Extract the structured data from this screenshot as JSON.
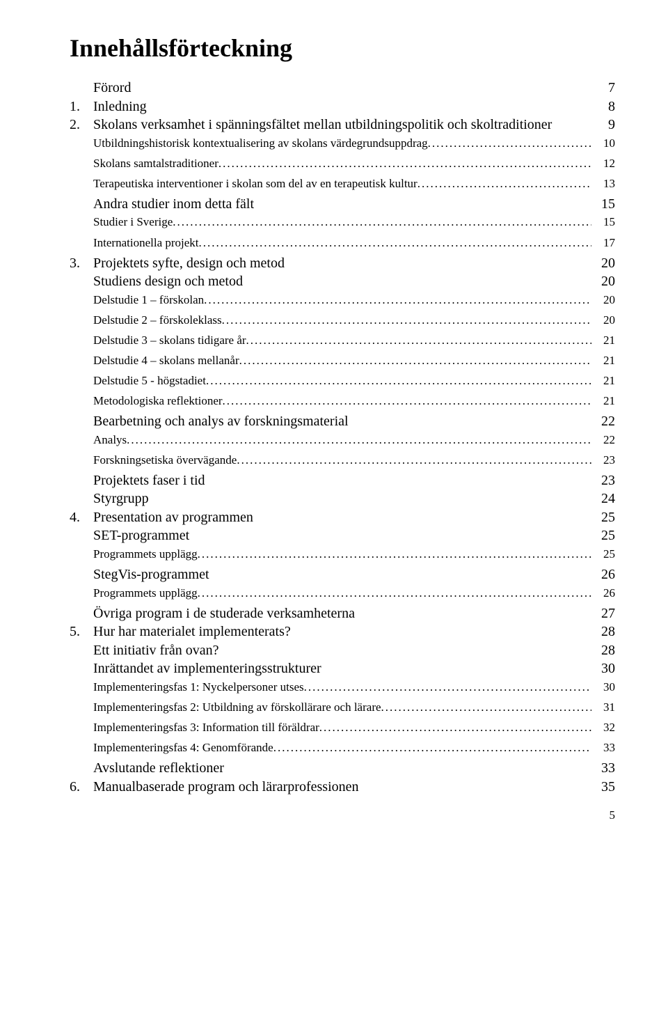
{
  "title": "Innehållsförteckning",
  "page_number": "5",
  "entries": [
    {
      "num": "",
      "label": "Förord",
      "page": "7",
      "level": 1,
      "size": "big",
      "dots": false,
      "gap": false
    },
    {
      "num": "1.",
      "label": "Inledning",
      "page": "8",
      "level": 0,
      "size": "big",
      "dots": false,
      "gap": false
    },
    {
      "num": "2.",
      "label": "Skolans verksamhet i spänningsfältet mellan utbildningspolitik och skoltraditioner",
      "page": "9",
      "level": 0,
      "size": "big",
      "dots": false,
      "gap": false
    },
    {
      "num": "",
      "label": "Utbildningshistorisk kontextualisering av skolans värdegrundsuppdrag",
      "page": "10",
      "level": 1,
      "size": "small",
      "dots": true,
      "gap": false
    },
    {
      "num": "",
      "label": "Skolans samtalstraditioner",
      "page": "12",
      "level": 2,
      "size": "small",
      "dots": true,
      "gap": true
    },
    {
      "num": "",
      "label": "Terapeutiska interventioner i skolan som del av en terapeutisk kultur",
      "page": "13",
      "level": 2,
      "size": "small",
      "dots": true,
      "gap": true
    },
    {
      "num": "",
      "label": "Andra studier inom detta fält",
      "page": "15",
      "level": 1,
      "size": "big",
      "dots": false,
      "gap": true
    },
    {
      "num": "",
      "label": "Studier i Sverige",
      "page": "15",
      "level": 1,
      "size": "small",
      "dots": true,
      "gap": false
    },
    {
      "num": "",
      "label": "Internationella projekt",
      "page": "17",
      "level": 2,
      "size": "small",
      "dots": true,
      "gap": true
    },
    {
      "num": "3.",
      "label": "Projektets syfte, design och metod",
      "page": "20",
      "level": 0,
      "size": "big",
      "dots": false,
      "gap": true
    },
    {
      "num": "",
      "label": "Studiens design och metod",
      "page": "20",
      "level": 1,
      "size": "big",
      "dots": false,
      "gap": false
    },
    {
      "num": "",
      "label": "Delstudie 1 – förskolan",
      "page": "20",
      "level": 1,
      "size": "small",
      "dots": true,
      "gap": false
    },
    {
      "num": "",
      "label": "Delstudie 2 – förskoleklass",
      "page": "20",
      "level": 2,
      "size": "small",
      "dots": true,
      "gap": true
    },
    {
      "num": "",
      "label": "Delstudie 3 – skolans tidigare år",
      "page": "21",
      "level": 2,
      "size": "small",
      "dots": true,
      "gap": true
    },
    {
      "num": "",
      "label": "Delstudie 4 – skolans mellanår",
      "page": "21",
      "level": 2,
      "size": "small",
      "dots": true,
      "gap": true
    },
    {
      "num": "",
      "label": "Delstudie 5 - högstadiet",
      "page": "21",
      "level": 2,
      "size": "small",
      "dots": true,
      "gap": true
    },
    {
      "num": "",
      "label": "Metodologiska reflektioner",
      "page": "21",
      "level": 2,
      "size": "small",
      "dots": true,
      "gap": true
    },
    {
      "num": "",
      "label": "Bearbetning och analys av forskningsmaterial",
      "page": "22",
      "level": 1,
      "size": "big",
      "dots": false,
      "gap": true
    },
    {
      "num": "",
      "label": "Analys",
      "page": "22",
      "level": 1,
      "size": "small",
      "dots": true,
      "gap": false
    },
    {
      "num": "",
      "label": "Forskningsetiska övervägande",
      "page": "23",
      "level": 2,
      "size": "small",
      "dots": true,
      "gap": true
    },
    {
      "num": "",
      "label": "Projektets faser i tid",
      "page": "23",
      "level": 1,
      "size": "big",
      "dots": false,
      "gap": true
    },
    {
      "num": "",
      "label": "Styrgrupp",
      "page": "24",
      "level": 1,
      "size": "big",
      "dots": false,
      "gap": false
    },
    {
      "num": "4.",
      "label": "Presentation av programmen",
      "page": "25",
      "level": 0,
      "size": "big",
      "dots": false,
      "gap": false
    },
    {
      "num": "",
      "label": "SET-programmet",
      "page": "25",
      "level": 1,
      "size": "big",
      "dots": false,
      "gap": false
    },
    {
      "num": "",
      "label": "Programmets upplägg",
      "page": "25",
      "level": 1,
      "size": "small",
      "dots": true,
      "gap": false
    },
    {
      "num": "",
      "label": "StegVis-programmet",
      "page": "26",
      "level": 1,
      "size": "big",
      "dots": false,
      "gap": true
    },
    {
      "num": "",
      "label": "Programmets upplägg",
      "page": "26",
      "level": 1,
      "size": "small",
      "dots": true,
      "gap": false
    },
    {
      "num": "",
      "label": "Övriga program i de studerade verksamheterna",
      "page": "27",
      "level": 1,
      "size": "big",
      "dots": false,
      "gap": true
    },
    {
      "num": "5.",
      "label": "Hur har materialet implementerats?",
      "page": "28",
      "level": 0,
      "size": "big",
      "dots": false,
      "gap": false
    },
    {
      "num": "",
      "label": "Ett initiativ från ovan?",
      "page": "28",
      "level": 1,
      "size": "big",
      "dots": false,
      "gap": false
    },
    {
      "num": "",
      "label": "Inrättandet av implementeringsstrukturer",
      "page": "30",
      "level": 1,
      "size": "big",
      "dots": false,
      "gap": false
    },
    {
      "num": "",
      "label": "Implementeringsfas 1: Nyckelpersoner utses",
      "page": "30",
      "level": 1,
      "size": "small",
      "dots": true,
      "gap": false
    },
    {
      "num": "",
      "label": "Implementeringsfas 2: Utbildning av förskollärare och lärare",
      "page": "31",
      "level": 2,
      "size": "small",
      "dots": true,
      "gap": true
    },
    {
      "num": "",
      "label": "Implementeringsfas 3: Information till föräldrar",
      "page": "32",
      "level": 2,
      "size": "small",
      "dots": true,
      "gap": true
    },
    {
      "num": "",
      "label": "Implementeringsfas 4: Genomförande",
      "page": "33",
      "level": 2,
      "size": "small",
      "dots": true,
      "gap": true
    },
    {
      "num": "",
      "label": "Avslutande reflektioner",
      "page": "33",
      "level": 1,
      "size": "big",
      "dots": false,
      "gap": true
    },
    {
      "num": "6.",
      "label": "Manualbaserade program och lärarprofessionen",
      "page": "35",
      "level": 0,
      "size": "big",
      "dots": false,
      "gap": false
    }
  ]
}
